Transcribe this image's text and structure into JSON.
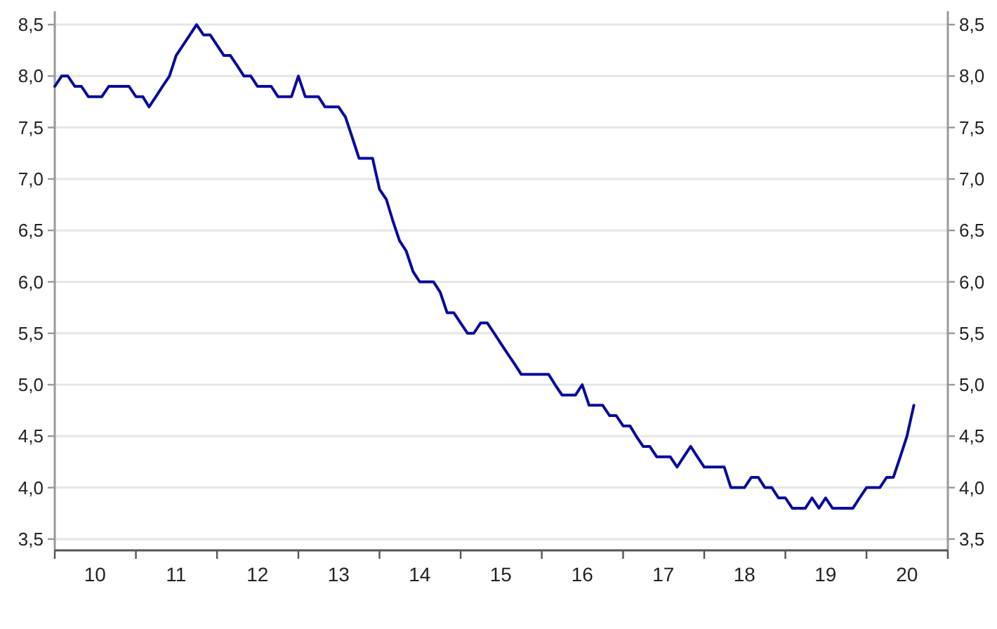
{
  "chart_data": {
    "type": "line",
    "x": [
      "2010-01",
      "2010-02",
      "2010-03",
      "2010-04",
      "2010-05",
      "2010-06",
      "2010-07",
      "2010-08",
      "2010-09",
      "2010-10",
      "2010-11",
      "2010-12",
      "2011-01",
      "2011-02",
      "2011-03",
      "2011-04",
      "2011-05",
      "2011-06",
      "2011-07",
      "2011-08",
      "2011-09",
      "2011-10",
      "2011-11",
      "2011-12",
      "2012-01",
      "2012-02",
      "2012-03",
      "2012-04",
      "2012-05",
      "2012-06",
      "2012-07",
      "2012-08",
      "2012-09",
      "2012-10",
      "2012-11",
      "2012-12",
      "2013-01",
      "2013-02",
      "2013-03",
      "2013-04",
      "2013-05",
      "2013-06",
      "2013-07",
      "2013-08",
      "2013-09",
      "2013-10",
      "2013-11",
      "2013-12",
      "2014-01",
      "2014-02",
      "2014-03",
      "2014-04",
      "2014-05",
      "2014-06",
      "2014-07",
      "2014-08",
      "2014-09",
      "2014-10",
      "2014-11",
      "2014-12",
      "2015-01",
      "2015-02",
      "2015-03",
      "2015-04",
      "2015-05",
      "2015-06",
      "2015-07",
      "2015-08",
      "2015-09",
      "2015-10",
      "2015-11",
      "2015-12",
      "2016-01",
      "2016-02",
      "2016-03",
      "2016-04",
      "2016-05",
      "2016-06",
      "2016-07",
      "2016-08",
      "2016-09",
      "2016-10",
      "2016-11",
      "2016-12",
      "2017-01",
      "2017-02",
      "2017-03",
      "2017-04",
      "2017-05",
      "2017-06",
      "2017-07",
      "2017-08",
      "2017-09",
      "2017-10",
      "2017-11",
      "2017-12",
      "2018-01",
      "2018-02",
      "2018-03",
      "2018-04",
      "2018-05",
      "2018-06",
      "2018-07",
      "2018-08",
      "2018-09",
      "2018-10",
      "2018-11",
      "2018-12",
      "2019-01",
      "2019-02",
      "2019-03",
      "2019-04",
      "2019-05",
      "2019-06",
      "2019-07",
      "2019-08",
      "2019-09",
      "2019-10",
      "2019-11",
      "2019-12",
      "2020-01",
      "2020-02",
      "2020-03",
      "2020-04",
      "2020-05",
      "2020-06",
      "2020-07",
      "2020-08"
    ],
    "series": [
      {
        "color": "#0a0a9e",
        "values": [
          7.9,
          8.0,
          8.0,
          7.9,
          7.9,
          7.8,
          7.8,
          7.8,
          7.9,
          7.9,
          7.9,
          7.9,
          7.8,
          7.8,
          7.7,
          7.8,
          7.9,
          8.0,
          8.2,
          8.3,
          8.4,
          8.5,
          8.4,
          8.4,
          8.3,
          8.2,
          8.2,
          8.1,
          8.0,
          8.0,
          7.9,
          7.9,
          7.9,
          7.8,
          7.8,
          7.8,
          8.0,
          7.8,
          7.8,
          7.8,
          7.7,
          7.7,
          7.7,
          7.6,
          7.4,
          7.2,
          7.2,
          7.2,
          6.9,
          6.8,
          6.6,
          6.4,
          6.3,
          6.1,
          6.0,
          6.0,
          6.0,
          5.9,
          5.7,
          5.7,
          5.6,
          5.5,
          5.5,
          5.6,
          5.6,
          5.5,
          5.4,
          5.3,
          5.2,
          5.1,
          5.1,
          5.1,
          5.1,
          5.1,
          5.0,
          4.9,
          4.9,
          4.9,
          5.0,
          4.8,
          4.8,
          4.8,
          4.7,
          4.7,
          4.6,
          4.6,
          4.5,
          4.4,
          4.4,
          4.3,
          4.3,
          4.3,
          4.2,
          4.3,
          4.4,
          4.3,
          4.2,
          4.2,
          4.2,
          4.2,
          4.0,
          4.0,
          4.0,
          4.1,
          4.1,
          4.0,
          4.0,
          3.9,
          3.9,
          3.8,
          3.8,
          3.8,
          3.9,
          3.8,
          3.9,
          3.8,
          3.8,
          3.8,
          3.8,
          3.9,
          4.0,
          4.0,
          4.0,
          4.1,
          4.1,
          4.3,
          4.5,
          4.8
        ]
      }
    ],
    "xlim": [
      "2010-01",
      "2021-01"
    ],
    "xticks": [
      {
        "value": "2010-01",
        "label": null
      },
      {
        "value": "2011-01",
        "label": null
      },
      {
        "value": "2012-01",
        "label": null
      },
      {
        "value": "2013-01",
        "label": null
      },
      {
        "value": "2014-01",
        "label": null
      },
      {
        "value": "2015-01",
        "label": null
      },
      {
        "value": "2016-01",
        "label": null
      },
      {
        "value": "2017-01",
        "label": null
      },
      {
        "value": "2018-01",
        "label": null
      },
      {
        "value": "2019-01",
        "label": null
      },
      {
        "value": "2020-01",
        "label": null
      },
      {
        "value": "2021-01",
        "label": null
      },
      {
        "value": "2010-07",
        "label": "10"
      },
      {
        "value": "2011-07",
        "label": "11"
      },
      {
        "value": "2012-07",
        "label": "12"
      },
      {
        "value": "2013-07",
        "label": "13"
      },
      {
        "value": "2014-07",
        "label": "14"
      },
      {
        "value": "2015-07",
        "label": "15"
      },
      {
        "value": "2016-07",
        "label": "16"
      },
      {
        "value": "2017-07",
        "label": "17"
      },
      {
        "value": "2018-07",
        "label": "18"
      },
      {
        "value": "2019-07",
        "label": "19"
      },
      {
        "value": "2020-07",
        "label": "20"
      }
    ],
    "ylim": [
      3.39,
      8.63
    ],
    "yticks": [
      {
        "value": 3.5,
        "label": "3,5"
      },
      {
        "value": 4,
        "label": "4,0"
      },
      {
        "value": 4.5,
        "label": "4,5"
      },
      {
        "value": 5,
        "label": "5,0"
      },
      {
        "value": 5.5,
        "label": "5,5"
      },
      {
        "value": 6,
        "label": "6,0"
      },
      {
        "value": 6.5,
        "label": "6,5"
      },
      {
        "value": 7,
        "label": "7,0"
      },
      {
        "value": 7.5,
        "label": "7,5"
      },
      {
        "value": 8,
        "label": "8,0"
      },
      {
        "value": 8.5,
        "label": "8,5"
      }
    ],
    "y2lim": [
      3.39,
      8.63
    ],
    "y2ticks": [
      {
        "value": 3.5,
        "label": "3,5"
      },
      {
        "value": 4,
        "label": "4,0"
      },
      {
        "value": 4.5,
        "label": "4,5"
      },
      {
        "value": 5,
        "label": "5,0"
      },
      {
        "value": 5.5,
        "label": "5,5"
      },
      {
        "value": 6,
        "label": "6,0"
      },
      {
        "value": 6.5,
        "label": "6,5"
      },
      {
        "value": 7,
        "label": "7,0"
      },
      {
        "value": 7.5,
        "label": "7,5"
      },
      {
        "value": 8,
        "label": "8,0"
      },
      {
        "value": 8.5,
        "label": "8,5"
      }
    ],
    "grid": "y",
    "line_style": "solid"
  }
}
